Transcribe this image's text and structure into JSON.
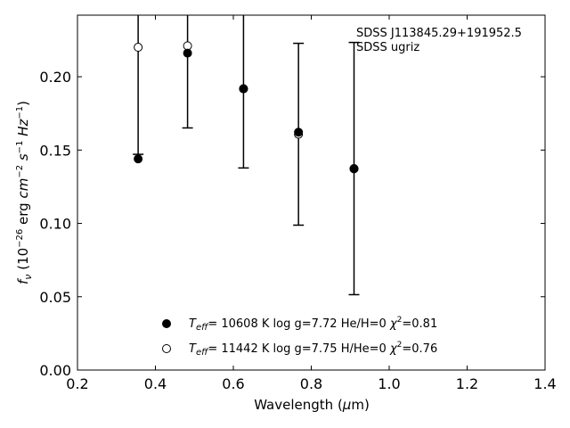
{
  "chart_data": {
    "type": "scatter",
    "title": "",
    "xlabel": "Wavelength (μm)",
    "ylabel": "f_ν (10^-26 erg cm^-2 s^-1 Hz^-1)",
    "xlim": [
      0.2,
      1.4
    ],
    "ylim": [
      0.0,
      0.242
    ],
    "x_ticks": [
      "0.2",
      "0.4",
      "0.6",
      "0.8",
      "1.0",
      "1.2",
      "1.4"
    ],
    "y_ticks": [
      "0.00",
      "0.05",
      "0.10",
      "0.15",
      "0.20"
    ],
    "grid": false,
    "legend_position": "bottom-center",
    "annotation": {
      "line1": "SDSS J113845.29+191952.5",
      "line2": "SDSS ugriz"
    },
    "observed": {
      "x": [
        0.3557,
        0.4825,
        0.6261,
        0.7672,
        0.9097
      ],
      "y": [
        0.2201,
        0.2211,
        0.1918,
        0.1608,
        0.1374
      ],
      "yerr": [
        0.073,
        0.056,
        0.054,
        0.062,
        0.086
      ]
    },
    "series": [
      {
        "name": "T_eff= 10608 K  log g=7.72  He/H=0  χ2=0.81",
        "marker": "filled-circle",
        "x": [
          0.3557,
          0.4825,
          0.6261,
          0.7672,
          0.9097
        ],
        "y": [
          0.144,
          0.2161,
          0.1918,
          0.1622,
          0.1372
        ]
      },
      {
        "name": "T_eff= 11442 K  log g=7.75  H/He=0  χ2=0.76",
        "marker": "open-circle",
        "x": [
          0.3557,
          0.4825,
          0.6261,
          0.7672,
          0.9097
        ],
        "y": [
          0.2201,
          0.2211,
          0.1918,
          0.1608,
          0.1374
        ]
      }
    ],
    "legend": {
      "entry1": {
        "teff": "10608 K",
        "logg": "log g=7.72",
        "comp": "He/H=0",
        "chi": "=0.81"
      },
      "entry2": {
        "teff": "11442 K",
        "logg": "log g=7.75",
        "comp": "H/He=0",
        "chi": "=0.76"
      }
    }
  }
}
